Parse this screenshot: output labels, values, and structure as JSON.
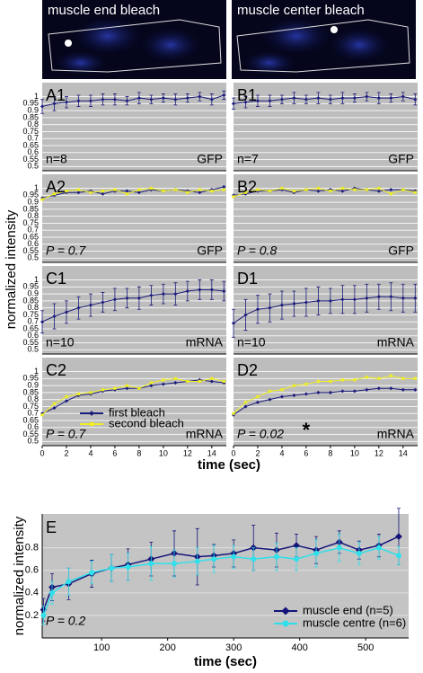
{
  "figure": {
    "ylabel": "normalized  intensity",
    "xlabel": "time (sec)"
  },
  "images": [
    {
      "label": "muscle end bleach"
    },
    {
      "label": "muscle center bleach"
    }
  ],
  "chart_data": [
    {
      "type": "line",
      "label": "A1",
      "annotation": "n=8",
      "tag": "GFP",
      "ytick_labels": true,
      "grid": true,
      "x": [
        0,
        1,
        2,
        3,
        4,
        5,
        6,
        7,
        8,
        9,
        10,
        11,
        12,
        13,
        14,
        15
      ],
      "xlim": [
        0,
        15.2
      ],
      "ylim": [
        0.47,
        1.1
      ],
      "yticks": [
        0.5,
        0.55,
        0.6,
        0.65,
        0.7,
        0.75,
        0.8,
        0.85,
        0.9,
        0.95,
        1
      ],
      "series": [
        {
          "color": "#1c1c7c",
          "values": [
            0.93,
            0.95,
            0.96,
            0.97,
            0.97,
            0.98,
            0.98,
            0.97,
            0.99,
            0.98,
            0.99,
            0.98,
            0.99,
            1.0,
            0.98,
            1.01
          ],
          "errors": [
            0.05,
            0.05,
            0.04,
            0.04,
            0.04,
            0.04,
            0.04,
            0.03,
            0.04,
            0.03,
            0.03,
            0.04,
            0.03,
            0.03,
            0.04,
            0.03
          ]
        }
      ]
    },
    {
      "type": "line",
      "label": "B1",
      "annotation": "n=7",
      "tag": "GFP",
      "ytick_labels": false,
      "grid": true,
      "x": [
        0,
        1,
        2,
        3,
        4,
        5,
        6,
        7,
        8,
        9,
        10,
        11,
        12,
        13,
        14,
        15
      ],
      "xlim": [
        0,
        15.2
      ],
      "ylim": [
        0.47,
        1.1
      ],
      "yticks": [
        0.5,
        0.55,
        0.6,
        0.65,
        0.7,
        0.75,
        0.8,
        0.85,
        0.9,
        0.95,
        1
      ],
      "series": [
        {
          "color": "#1c1c7c",
          "values": [
            0.95,
            0.96,
            0.97,
            0.97,
            0.98,
            0.99,
            0.98,
            0.99,
            0.98,
            0.99,
            0.99,
            1.0,
            0.99,
            0.99,
            1.0,
            0.98
          ],
          "errors": [
            0.04,
            0.04,
            0.04,
            0.04,
            0.03,
            0.04,
            0.03,
            0.04,
            0.03,
            0.04,
            0.03,
            0.03,
            0.04,
            0.03,
            0.03,
            0.04
          ]
        }
      ]
    },
    {
      "type": "line",
      "label": "A2",
      "annotation": "P = 0.7",
      "tag": "GFP",
      "ytick_labels": true,
      "grid": true,
      "x": [
        0,
        1,
        2,
        3,
        4,
        5,
        6,
        7,
        8,
        9,
        10,
        11,
        12,
        13,
        14,
        15
      ],
      "xlim": [
        0,
        15.2
      ],
      "ylim": [
        0.47,
        1.1
      ],
      "yticks": [
        0.5,
        0.55,
        0.6,
        0.65,
        0.7,
        0.75,
        0.8,
        0.85,
        0.9,
        0.95,
        1
      ],
      "series": [
        {
          "color": "#1c1c7c",
          "marker": "diamond",
          "values": [
            0.93,
            0.95,
            0.97,
            0.97,
            0.98,
            0.96,
            0.98,
            0.98,
            0.97,
            0.99,
            0.98,
            0.99,
            0.98,
            0.97,
            0.99,
            1.01
          ]
        },
        {
          "color": "#eeee22",
          "marker": "square",
          "values": [
            0.92,
            0.96,
            0.98,
            0.99,
            0.97,
            0.98,
            0.99,
            0.96,
            0.99,
            1.0,
            0.98,
            0.99,
            0.97,
            0.99,
            0.98,
            0.99
          ]
        }
      ]
    },
    {
      "type": "line",
      "label": "B2",
      "annotation": "P = 0.8",
      "tag": "GFP",
      "ytick_labels": false,
      "grid": true,
      "x": [
        0,
        1,
        2,
        3,
        4,
        5,
        6,
        7,
        8,
        9,
        10,
        11,
        12,
        13,
        14,
        15
      ],
      "xlim": [
        0,
        15.2
      ],
      "ylim": [
        0.47,
        1.1
      ],
      "yticks": [
        0.5,
        0.55,
        0.6,
        0.65,
        0.7,
        0.75,
        0.8,
        0.85,
        0.9,
        0.95,
        1
      ],
      "series": [
        {
          "color": "#1c1c7c",
          "marker": "diamond",
          "values": [
            0.95,
            0.96,
            0.98,
            0.98,
            0.99,
            0.97,
            0.99,
            0.98,
            0.99,
            0.98,
            1.0,
            0.99,
            0.98,
            0.99,
            0.99,
            0.98
          ]
        },
        {
          "color": "#eeee22",
          "marker": "square",
          "values": [
            0.94,
            0.97,
            0.99,
            0.98,
            1.0,
            0.98,
            0.99,
            1.0,
            0.98,
            1.0,
            0.99,
            0.99,
            1.0,
            0.96,
            0.99,
            0.97
          ]
        }
      ]
    },
    {
      "type": "line",
      "label": "C1",
      "annotation": "n=10",
      "tag": "mRNA",
      "ytick_labels": true,
      "grid": true,
      "x": [
        0,
        1,
        2,
        3,
        4,
        5,
        6,
        7,
        8,
        9,
        10,
        11,
        12,
        13,
        14,
        15
      ],
      "xlim": [
        0,
        15.2
      ],
      "ylim": [
        0.47,
        1.1
      ],
      "yticks": [
        0.5,
        0.55,
        0.6,
        0.65,
        0.7,
        0.75,
        0.8,
        0.85,
        0.9,
        0.95,
        1
      ],
      "series": [
        {
          "color": "#1c1c7c",
          "values": [
            0.7,
            0.74,
            0.77,
            0.8,
            0.82,
            0.84,
            0.86,
            0.87,
            0.87,
            0.89,
            0.9,
            0.9,
            0.92,
            0.93,
            0.93,
            0.92
          ],
          "errors": [
            0.08,
            0.09,
            0.08,
            0.08,
            0.08,
            0.07,
            0.08,
            0.07,
            0.08,
            0.07,
            0.07,
            0.08,
            0.07,
            0.07,
            0.07,
            0.07
          ]
        }
      ]
    },
    {
      "type": "line",
      "label": "D1",
      "annotation": "n=10",
      "tag": "mRNA",
      "ytick_labels": false,
      "grid": true,
      "x": [
        0,
        1,
        2,
        3,
        4,
        5,
        6,
        7,
        8,
        9,
        10,
        11,
        12,
        13,
        14,
        15
      ],
      "xlim": [
        0,
        15.2
      ],
      "ylim": [
        0.47,
        1.1
      ],
      "yticks": [
        0.5,
        0.55,
        0.6,
        0.65,
        0.7,
        0.75,
        0.8,
        0.85,
        0.9,
        0.95,
        1
      ],
      "series": [
        {
          "color": "#1c1c7c",
          "values": [
            0.69,
            0.75,
            0.79,
            0.8,
            0.82,
            0.83,
            0.84,
            0.85,
            0.85,
            0.86,
            0.86,
            0.87,
            0.88,
            0.88,
            0.87,
            0.87
          ],
          "errors": [
            0.1,
            0.11,
            0.1,
            0.1,
            0.1,
            0.09,
            0.1,
            0.1,
            0.09,
            0.1,
            0.1,
            0.1,
            0.09,
            0.1,
            0.1,
            0.1
          ]
        }
      ]
    },
    {
      "type": "line",
      "label": "C2",
      "annotation": "P = 0.7",
      "tag": "mRNA",
      "ytick_labels": true,
      "grid": true,
      "x": [
        0,
        1,
        2,
        3,
        4,
        5,
        6,
        7,
        8,
        9,
        10,
        11,
        12,
        13,
        14,
        15
      ],
      "xlim": [
        0,
        15.2
      ],
      "ylim": [
        0.47,
        1.1
      ],
      "yticks": [
        0.5,
        0.55,
        0.6,
        0.65,
        0.7,
        0.75,
        0.8,
        0.85,
        0.9,
        0.95,
        1
      ],
      "xticks": [
        0,
        2,
        4,
        6,
        8,
        10,
        12,
        14
      ],
      "series": [
        {
          "name": "first bleach",
          "color": "#1c1c7c",
          "marker": "diamond",
          "values": [
            0.7,
            0.74,
            0.79,
            0.83,
            0.84,
            0.86,
            0.87,
            0.88,
            0.88,
            0.9,
            0.91,
            0.92,
            0.93,
            0.94,
            0.93,
            0.92
          ]
        },
        {
          "name": "second bleach",
          "color": "#eeee22",
          "marker": "square",
          "values": [
            0.69,
            0.77,
            0.82,
            0.84,
            0.85,
            0.87,
            0.88,
            0.9,
            0.88,
            0.92,
            0.94,
            0.95,
            0.93,
            0.93,
            0.95,
            0.93
          ]
        }
      ]
    },
    {
      "type": "line",
      "label": "D2",
      "annotation": "P = 0.02",
      "tag": "mRNA",
      "note": "*",
      "ytick_labels": false,
      "grid": true,
      "x": [
        0,
        1,
        2,
        3,
        4,
        5,
        6,
        7,
        8,
        9,
        10,
        11,
        12,
        13,
        14,
        15
      ],
      "xlim": [
        0,
        15.2
      ],
      "ylim": [
        0.47,
        1.1
      ],
      "yticks": [
        0.5,
        0.55,
        0.6,
        0.65,
        0.7,
        0.75,
        0.8,
        0.85,
        0.9,
        0.95,
        1
      ],
      "xticks": [
        0,
        2,
        4,
        6,
        8,
        10,
        12,
        14
      ],
      "series": [
        {
          "color": "#1c1c7c",
          "marker": "diamond",
          "values": [
            0.69,
            0.75,
            0.78,
            0.8,
            0.82,
            0.83,
            0.84,
            0.85,
            0.85,
            0.86,
            0.86,
            0.87,
            0.88,
            0.88,
            0.87,
            0.87
          ]
        },
        {
          "color": "#eeee22",
          "marker": "square",
          "values": [
            0.7,
            0.78,
            0.82,
            0.86,
            0.87,
            0.9,
            0.91,
            0.93,
            0.93,
            0.94,
            0.94,
            0.96,
            0.95,
            0.97,
            0.95,
            0.95
          ]
        }
      ]
    },
    {
      "type": "line",
      "label": "E",
      "annotation": "P = 0.2",
      "ylabel": "normalized  intensity",
      "xlabel": "time (sec)",
      "ytick_labels": true,
      "grid": true,
      "legend": "lower right",
      "x": [
        12,
        25,
        50,
        85,
        115,
        140,
        175,
        210,
        245,
        270,
        300,
        330,
        365,
        395,
        425,
        460,
        490,
        520,
        550
      ],
      "xlim": [
        10,
        565
      ],
      "ylim": [
        0,
        1.1
      ],
      "yticks": [
        0.2,
        0.4,
        0.6,
        0.8
      ],
      "xticks": [
        100,
        200,
        300,
        400,
        500
      ],
      "series": [
        {
          "name": "muscle end (n=5)",
          "color": "#14147a",
          "marker": "diamond",
          "values": [
            0.25,
            0.45,
            0.48,
            0.57,
            0.62,
            0.65,
            0.7,
            0.75,
            0.72,
            0.73,
            0.75,
            0.8,
            0.78,
            0.82,
            0.78,
            0.85,
            0.78,
            0.82,
            0.9
          ],
          "errors": [
            0.1,
            0.12,
            0.14,
            0.12,
            0.12,
            0.14,
            0.15,
            0.2,
            0.25,
            0.1,
            0.12,
            0.2,
            0.15,
            0.1,
            0.12,
            0.1,
            0.08,
            0.1,
            0.25
          ]
        },
        {
          "name": "muscle centre (n=6)",
          "color": "#30e0ea",
          "marker": "circle",
          "values": [
            0.2,
            0.4,
            0.5,
            0.58,
            0.62,
            0.63,
            0.66,
            0.66,
            0.68,
            0.7,
            0.72,
            0.7,
            0.72,
            0.7,
            0.75,
            0.8,
            0.75,
            0.8,
            0.73
          ],
          "errors": [
            0.08,
            0.1,
            0.12,
            0.1,
            0.12,
            0.12,
            0.15,
            0.12,
            0.12,
            0.12,
            0.1,
            0.1,
            0.12,
            0.1,
            0.12,
            0.12,
            0.1,
            0.1,
            0.08
          ]
        }
      ]
    }
  ]
}
